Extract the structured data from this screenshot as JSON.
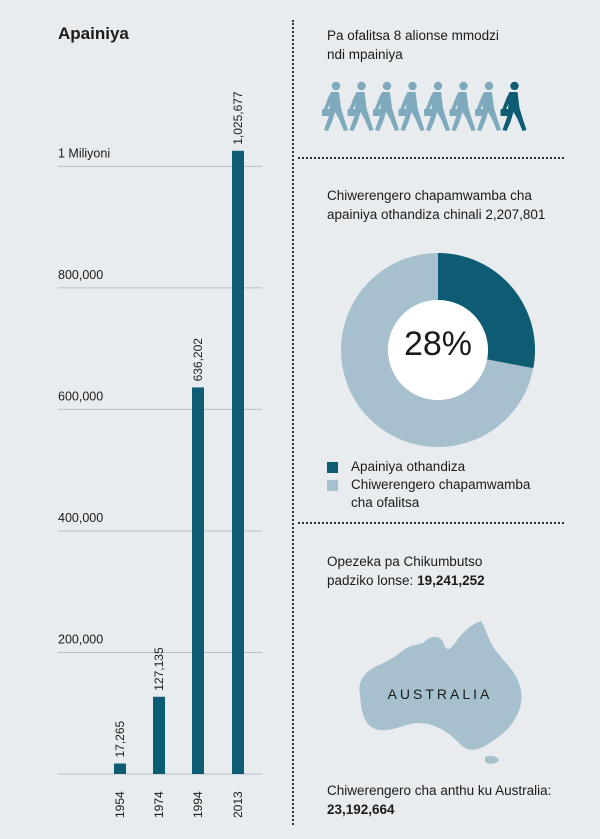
{
  "title": "Apainiya",
  "chart_data": {
    "type": "bar",
    "title": "Apainiya",
    "categories": [
      "1954",
      "1974",
      "1994",
      "2013"
    ],
    "values": [
      17265,
      127135,
      636202,
      1025677
    ],
    "data_labels": [
      "17,265",
      "127,135",
      "636,202",
      "1,025,677"
    ],
    "yticks": [
      {
        "value": 200000,
        "label": "200,000"
      },
      {
        "value": 400000,
        "label": "400,000"
      },
      {
        "value": 600000,
        "label": "600,000"
      },
      {
        "value": 800000,
        "label": "800,000"
      },
      {
        "value": 1000000,
        "label": "1 Miliyoni"
      }
    ],
    "ylim": [
      0,
      1050000
    ],
    "grid": true,
    "bar_color": "#0e5c73"
  },
  "publishers": {
    "text": "Pa ofalitsa 8 alionse mmodzi ndi mpainiya",
    "line1": "Pa ofalitsa 8 alionse mmodzi",
    "line2": "ndi mpainiya",
    "total": 8,
    "highlighted": 1,
    "icon": "walking-person-with-briefcase-icon"
  },
  "donut": {
    "title_line1": "Chiwerengero chapamwamba cha",
    "title_line2": "apainiya othandiza chinali 2,207,801",
    "percent_label": "28%",
    "percent_value": 28,
    "legend": [
      {
        "label": "Apainiya othandiza",
        "color": "#0e5c73"
      },
      {
        "label_line1": "Chiwerengero chapamwamba",
        "label_line2": "cha ofalitsa",
        "color": "#a6c0cd"
      }
    ]
  },
  "memorial": {
    "line1": "Opezeka pa Chikumbutso",
    "line2_prefix": "padziko lonse:",
    "value": "19,241,252"
  },
  "map": {
    "label": "AUSTRALIA",
    "population_label": "Chiwerengero cha anthu ku Australia:",
    "population_value": "23,192,664",
    "color": "#a6c0cd"
  },
  "colors": {
    "dark": "#0e5c73",
    "light": "#a6c0cd",
    "walker_light": "#7fa9bd",
    "background": "#e8ecef"
  }
}
